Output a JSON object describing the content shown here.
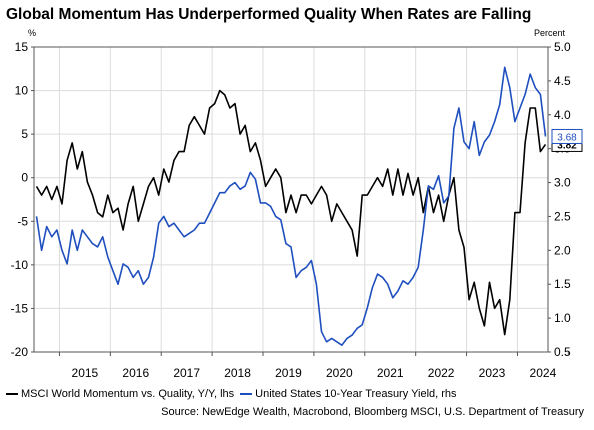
{
  "chart_data": {
    "type": "line",
    "title": "Global Momentum Has Underperformed Quality When Rates are Falling",
    "left_axis": {
      "unit": "%",
      "ylim": [
        -20,
        15
      ],
      "ticks": [
        15,
        10,
        5,
        0,
        -5,
        -10,
        -15,
        -20
      ]
    },
    "right_axis": {
      "unit": "Percent",
      "ylim": [
        0.5,
        5.0
      ],
      "ticks": [
        "5.0",
        "4.5",
        "4.0",
        "3.5",
        "3.0",
        "2.5",
        "2.0",
        "1.5",
        "1.0",
        "0.5"
      ]
    },
    "x_tick_labels": [
      "2015",
      "2016",
      "2017",
      "2018",
      "2019",
      "2020",
      "2021",
      "2022",
      "2023",
      "2024"
    ],
    "xlim": [
      2014.5,
      2024.6
    ],
    "grid": true,
    "series": [
      {
        "name": "MSCI World Momentum vs. Quality, Y/Y, lhs",
        "axis": "left",
        "color": "#000000",
        "end_label": "3.82",
        "x": [
          2014.55,
          2014.65,
          2014.75,
          2014.85,
          2014.95,
          2015.05,
          2015.15,
          2015.25,
          2015.35,
          2015.45,
          2015.55,
          2015.65,
          2015.75,
          2015.85,
          2015.95,
          2016.05,
          2016.15,
          2016.25,
          2016.35,
          2016.45,
          2016.55,
          2016.65,
          2016.75,
          2016.85,
          2016.95,
          2017.05,
          2017.15,
          2017.25,
          2017.35,
          2017.45,
          2017.55,
          2017.65,
          2017.75,
          2017.85,
          2017.95,
          2018.05,
          2018.15,
          2018.25,
          2018.35,
          2018.45,
          2018.55,
          2018.65,
          2018.75,
          2018.85,
          2018.95,
          2019.05,
          2019.15,
          2019.25,
          2019.35,
          2019.45,
          2019.55,
          2019.65,
          2019.75,
          2019.85,
          2019.95,
          2020.05,
          2020.15,
          2020.25,
          2020.35,
          2020.45,
          2020.55,
          2020.65,
          2020.75,
          2020.85,
          2020.95,
          2021.05,
          2021.15,
          2021.25,
          2021.35,
          2021.45,
          2021.55,
          2021.65,
          2021.75,
          2021.85,
          2021.95,
          2022.05,
          2022.15,
          2022.25,
          2022.35,
          2022.45,
          2022.55,
          2022.65,
          2022.75,
          2022.85,
          2022.95,
          2023.05,
          2023.15,
          2023.25,
          2023.35,
          2023.45,
          2023.55,
          2023.65,
          2023.75,
          2023.85,
          2023.95,
          2024.05,
          2024.15,
          2024.25,
          2024.35,
          2024.45,
          2024.55
        ],
        "y": [
          -1,
          -2,
          -1,
          -2.5,
          -1,
          -3,
          2,
          4,
          1,
          3,
          -0.5,
          -2,
          -4,
          -4.5,
          -2,
          -4,
          -3.5,
          -6,
          -3,
          -1,
          -5,
          -3,
          -1,
          0,
          -2,
          1,
          -0.5,
          2,
          3,
          3,
          6,
          7,
          6,
          5,
          8,
          8.5,
          10,
          9.5,
          8,
          8.5,
          5,
          6,
          3,
          4,
          2,
          -1,
          0,
          1,
          0,
          -4,
          -2,
          -4,
          -2,
          -2,
          -3,
          -2,
          -1,
          -2,
          -5,
          -3,
          -4,
          -5,
          -6,
          -9,
          -2,
          -2,
          -1,
          0,
          -1,
          1,
          -2,
          1,
          -2,
          0.5,
          -2,
          0,
          -4,
          -1,
          -4,
          -2,
          -5,
          -2,
          0,
          -6,
          -8,
          -14,
          -12,
          -15,
          -17,
          -12,
          -15,
          -14,
          -18,
          -14,
          -4,
          -4,
          4,
          8,
          8,
          3,
          3.82
        ]
      },
      {
        "name": "United States 10-Year Treasury Yield, rhs",
        "axis": "right",
        "color": "#1f4fbf",
        "end_label": "3.68",
        "x": [
          2014.55,
          2014.65,
          2014.75,
          2014.85,
          2014.95,
          2015.05,
          2015.15,
          2015.25,
          2015.35,
          2015.45,
          2015.55,
          2015.65,
          2015.75,
          2015.85,
          2015.95,
          2016.05,
          2016.15,
          2016.25,
          2016.35,
          2016.45,
          2016.55,
          2016.65,
          2016.75,
          2016.85,
          2016.95,
          2017.05,
          2017.15,
          2017.25,
          2017.35,
          2017.45,
          2017.55,
          2017.65,
          2017.75,
          2017.85,
          2017.95,
          2018.05,
          2018.15,
          2018.25,
          2018.35,
          2018.45,
          2018.55,
          2018.65,
          2018.75,
          2018.85,
          2018.95,
          2019.05,
          2019.15,
          2019.25,
          2019.35,
          2019.45,
          2019.55,
          2019.65,
          2019.75,
          2019.85,
          2019.95,
          2020.05,
          2020.15,
          2020.25,
          2020.35,
          2020.45,
          2020.55,
          2020.65,
          2020.75,
          2020.85,
          2020.95,
          2021.05,
          2021.15,
          2021.25,
          2021.35,
          2021.45,
          2021.55,
          2021.65,
          2021.75,
          2021.85,
          2021.95,
          2022.05,
          2022.15,
          2022.25,
          2022.35,
          2022.45,
          2022.55,
          2022.65,
          2022.75,
          2022.85,
          2022.95,
          2023.05,
          2023.15,
          2023.25,
          2023.35,
          2023.45,
          2023.55,
          2023.65,
          2023.75,
          2023.85,
          2023.95,
          2024.05,
          2024.15,
          2024.25,
          2024.35,
          2024.45,
          2024.55
        ],
        "y": [
          2.5,
          2.0,
          2.35,
          2.2,
          2.3,
          2.0,
          1.8,
          2.3,
          2.0,
          2.3,
          2.2,
          2.1,
          2.05,
          2.2,
          1.9,
          1.7,
          1.5,
          1.8,
          1.75,
          1.6,
          1.7,
          1.5,
          1.6,
          1.9,
          2.4,
          2.5,
          2.35,
          2.4,
          2.3,
          2.2,
          2.25,
          2.3,
          2.4,
          2.4,
          2.55,
          2.7,
          2.85,
          2.85,
          2.95,
          3.0,
          2.9,
          2.95,
          3.15,
          3.05,
          2.7,
          2.7,
          2.65,
          2.5,
          2.45,
          2.1,
          2.05,
          1.6,
          1.7,
          1.75,
          1.85,
          1.5,
          0.8,
          0.65,
          0.7,
          0.65,
          0.6,
          0.7,
          0.75,
          0.85,
          0.9,
          1.15,
          1.45,
          1.65,
          1.6,
          1.5,
          1.3,
          1.4,
          1.55,
          1.5,
          1.6,
          1.75,
          2.3,
          2.95,
          2.9,
          3.1,
          2.7,
          2.8,
          3.8,
          4.1,
          3.6,
          3.5,
          3.9,
          3.4,
          3.6,
          3.7,
          3.9,
          4.15,
          4.7,
          4.4,
          3.9,
          4.1,
          4.3,
          4.6,
          4.4,
          4.3,
          3.68
        ]
      }
    ],
    "legend_position": "bottom"
  },
  "source": "Source: NewEdge Wealth, Macrobond, Bloomberg MSCI, U.S. Department of Treasury"
}
